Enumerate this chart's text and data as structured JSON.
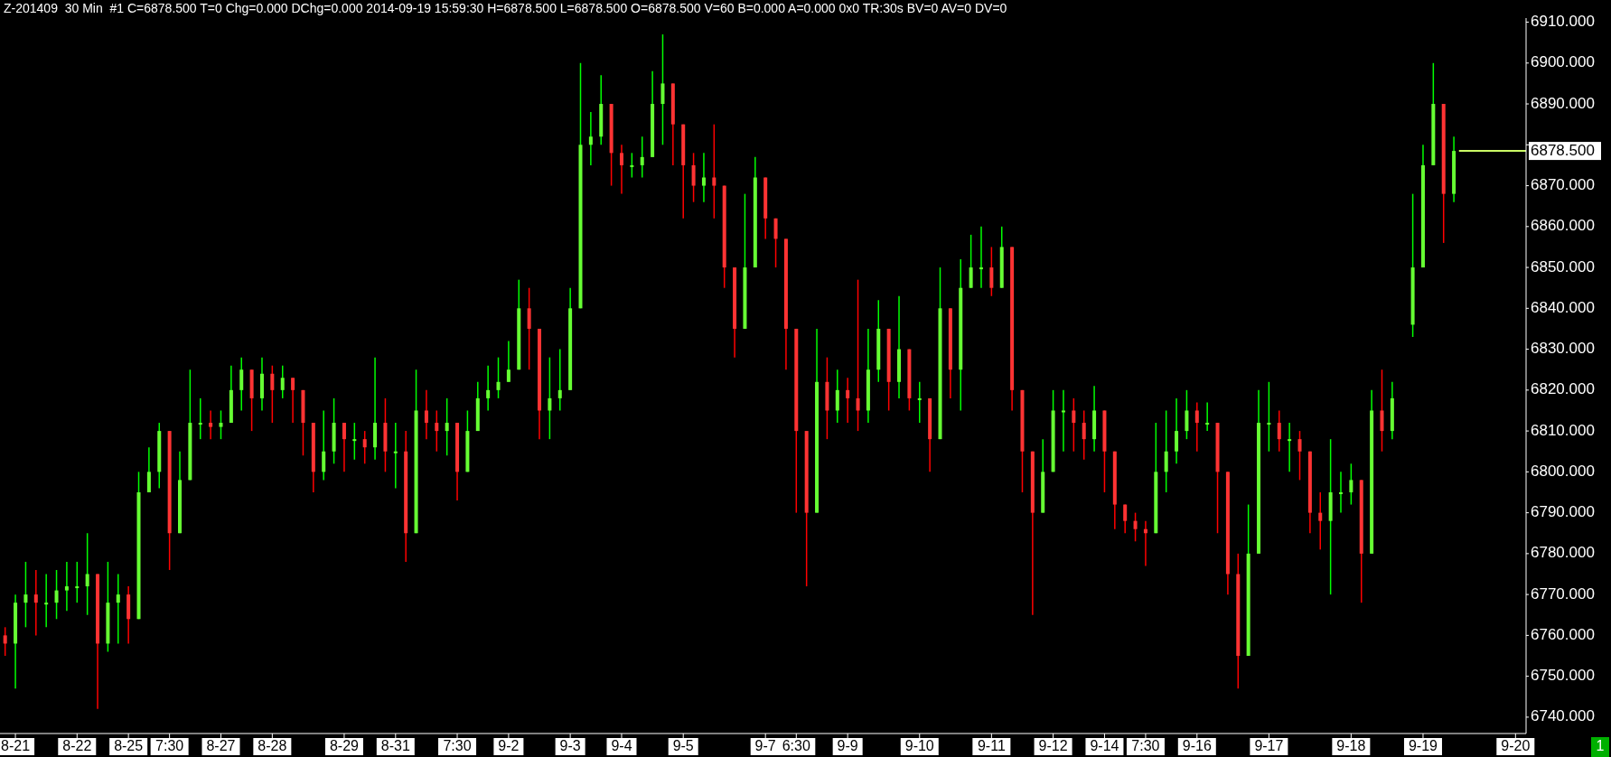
{
  "chart_data": {
    "type": "candlestick",
    "title": "Z-201409  30 Min  #1 C=6878.500 T=0 Chg=0.000 DChg=0.000 2014-09-19 15:59:30 H=6878.500 L=6878.500 O=6878.500 V=60 B=0.000 A=0.000 0x0 TR:30s BV=0 AV=0 DV=0",
    "categories": [
      null,
      "8-21",
      null,
      null,
      null,
      null,
      null,
      "8-22",
      null,
      null,
      null,
      null,
      "8-25",
      null,
      null,
      null,
      "7:30",
      null,
      null,
      null,
      null,
      "8-27",
      null,
      null,
      null,
      null,
      "8-28",
      null,
      null,
      null,
      null,
      null,
      null,
      "8-29",
      null,
      null,
      null,
      null,
      "8-31",
      null,
      null,
      null,
      null,
      null,
      "7:30",
      null,
      null,
      null,
      null,
      "9-2",
      null,
      null,
      null,
      null,
      null,
      "9-3",
      null,
      null,
      null,
      null,
      "9-4",
      null,
      null,
      null,
      null,
      null,
      "9-5",
      null,
      null,
      null,
      null,
      null,
      null,
      null,
      "9-7",
      null,
      null,
      "6:30",
      null,
      null,
      null,
      null,
      "9-9",
      null,
      null,
      null,
      null,
      null,
      null,
      "9-10",
      null,
      null,
      null,
      null,
      null,
      null,
      "9-11",
      null,
      null,
      null,
      null,
      null,
      "9-12",
      null,
      null,
      null,
      null,
      "9-14",
      null,
      null,
      null,
      "7:30",
      null,
      null,
      null,
      null,
      "9-16",
      null,
      null,
      null,
      null,
      null,
      null,
      "9-17",
      null,
      null,
      null,
      null,
      null,
      null,
      null,
      "9-18",
      null,
      null,
      null,
      null,
      null,
      null,
      "9-19",
      null,
      null,
      null,
      null,
      null,
      null,
      null,
      null,
      "9-20"
    ],
    "ohlc": [
      [
        6760,
        6762,
        6755,
        6758
      ],
      [
        6758,
        6770,
        6747,
        6768
      ],
      [
        6768,
        6778,
        6762,
        6770
      ],
      [
        6770,
        6776,
        6760,
        6768
      ],
      [
        6768,
        6775,
        6762,
        6768
      ],
      [
        6768,
        6776,
        6764,
        6771
      ],
      [
        6771,
        6778,
        6766,
        6772
      ],
      [
        6772,
        6778,
        6768,
        6772
      ],
      [
        6772,
        6785,
        6765,
        6775
      ],
      [
        6775,
        6775,
        6742,
        6758
      ],
      [
        6758,
        6778,
        6756,
        6768
      ],
      [
        6768,
        6775,
        6758,
        6770
      ],
      [
        6770,
        6772,
        6758,
        6764
      ],
      [
        6764,
        6800,
        6764,
        6795
      ],
      [
        6795,
        6806,
        6795,
        6800
      ],
      [
        6800,
        6812,
        6796,
        6810
      ],
      [
        6810,
        6810,
        6776,
        6785
      ],
      [
        6785,
        6805,
        6785,
        6798
      ],
      [
        6798,
        6825,
        6798,
        6812
      ],
      [
        6812,
        6818,
        6808,
        6812
      ],
      [
        6812,
        6815,
        6808,
        6811
      ],
      [
        6811,
        6815,
        6808,
        6812
      ],
      [
        6812,
        6826,
        6812,
        6820
      ],
      [
        6820,
        6828,
        6815,
        6825
      ],
      [
        6825,
        6825,
        6810,
        6818
      ],
      [
        6818,
        6828,
        6815,
        6824
      ],
      [
        6824,
        6826,
        6812,
        6820
      ],
      [
        6820,
        6826,
        6818,
        6823
      ],
      [
        6823,
        6823,
        6812,
        6820
      ],
      [
        6820,
        6820,
        6804,
        6812
      ],
      [
        6812,
        6812,
        6795,
        6800
      ],
      [
        6800,
        6815,
        6798,
        6805
      ],
      [
        6805,
        6818,
        6802,
        6812
      ],
      [
        6812,
        6812,
        6800,
        6808
      ],
      [
        6808,
        6812,
        6803,
        6808
      ],
      [
        6808,
        6810,
        6802,
        6806
      ],
      [
        6806,
        6828,
        6803,
        6812
      ],
      [
        6812,
        6818,
        6800,
        6805
      ],
      [
        6805,
        6812,
        6796,
        6805
      ],
      [
        6805,
        6810,
        6778,
        6785
      ],
      [
        6785,
        6825,
        6785,
        6815
      ],
      [
        6815,
        6820,
        6808,
        6812
      ],
      [
        6812,
        6815,
        6805,
        6810
      ],
      [
        6810,
        6818,
        6804,
        6812
      ],
      [
        6812,
        6812,
        6793,
        6800
      ],
      [
        6800,
        6815,
        6800,
        6810
      ],
      [
        6810,
        6822,
        6810,
        6818
      ],
      [
        6818,
        6826,
        6815,
        6820
      ],
      [
        6820,
        6828,
        6818,
        6822
      ],
      [
        6822,
        6832,
        6822,
        6825
      ],
      [
        6825,
        6847,
        6825,
        6840
      ],
      [
        6840,
        6845,
        6825,
        6835
      ],
      [
        6835,
        6835,
        6808,
        6815
      ],
      [
        6815,
        6828,
        6808,
        6818
      ],
      [
        6818,
        6830,
        6815,
        6820
      ],
      [
        6820,
        6845,
        6820,
        6840
      ],
      [
        6840,
        6900,
        6840,
        6880
      ],
      [
        6880,
        6888,
        6875,
        6882
      ],
      [
        6882,
        6897,
        6880,
        6890
      ],
      [
        6890,
        6890,
        6870,
        6878
      ],
      [
        6878,
        6880,
        6868,
        6875
      ],
      [
        6875,
        6878,
        6872,
        6875
      ],
      [
        6875,
        6882,
        6872,
        6877
      ],
      [
        6877,
        6898,
        6877,
        6890
      ],
      [
        6890,
        6907,
        6880,
        6895
      ],
      [
        6895,
        6895,
        6875,
        6885
      ],
      [
        6885,
        6885,
        6862,
        6875
      ],
      [
        6875,
        6878,
        6866,
        6870
      ],
      [
        6870,
        6878,
        6866,
        6872
      ],
      [
        6872,
        6885,
        6862,
        6870
      ],
      [
        6870,
        6870,
        6845,
        6850
      ],
      [
        6850,
        6850,
        6828,
        6835
      ],
      [
        6835,
        6868,
        6835,
        6850
      ],
      [
        6850,
        6877,
        6850,
        6872
      ],
      [
        6872,
        6872,
        6857,
        6862
      ],
      [
        6862,
        6862,
        6850,
        6857
      ],
      [
        6857,
        6857,
        6825,
        6835
      ],
      [
        6835,
        6835,
        6790,
        6810
      ],
      [
        6810,
        6810,
        6772,
        6790
      ],
      [
        6790,
        6835,
        6790,
        6822
      ],
      [
        6822,
        6828,
        6808,
        6815
      ],
      [
        6815,
        6825,
        6812,
        6820
      ],
      [
        6820,
        6823,
        6812,
        6818
      ],
      [
        6818,
        6847,
        6810,
        6815
      ],
      [
        6815,
        6835,
        6812,
        6825
      ],
      [
        6825,
        6842,
        6822,
        6835
      ],
      [
        6835,
        6835,
        6815,
        6822
      ],
      [
        6822,
        6843,
        6818,
        6830
      ],
      [
        6830,
        6830,
        6815,
        6818
      ],
      [
        6818,
        6822,
        6812,
        6818
      ],
      [
        6818,
        6818,
        6800,
        6808
      ],
      [
        6808,
        6850,
        6808,
        6840
      ],
      [
        6840,
        6840,
        6818,
        6825
      ],
      [
        6825,
        6852,
        6815,
        6845
      ],
      [
        6845,
        6858,
        6845,
        6850
      ],
      [
        6850,
        6860,
        6845,
        6850
      ],
      [
        6850,
        6855,
        6843,
        6845
      ],
      [
        6845,
        6860,
        6845,
        6855
      ],
      [
        6855,
        6855,
        6815,
        6820
      ],
      [
        6820,
        6820,
        6795,
        6805
      ],
      [
        6805,
        6805,
        6765,
        6790
      ],
      [
        6790,
        6808,
        6790,
        6800
      ],
      [
        6800,
        6820,
        6800,
        6815
      ],
      [
        6815,
        6820,
        6805,
        6815
      ],
      [
        6815,
        6818,
        6805,
        6812
      ],
      [
        6812,
        6815,
        6803,
        6808
      ],
      [
        6808,
        6821,
        6805,
        6815
      ],
      [
        6815,
        6815,
        6795,
        6805
      ],
      [
        6805,
        6805,
        6786,
        6792
      ],
      [
        6792,
        6792,
        6785,
        6788
      ],
      [
        6788,
        6790,
        6783,
        6786
      ],
      [
        6786,
        6788,
        6777,
        6785
      ],
      [
        6785,
        6812,
        6785,
        6800
      ],
      [
        6800,
        6815,
        6795,
        6805
      ],
      [
        6805,
        6818,
        6802,
        6810
      ],
      [
        6810,
        6820,
        6808,
        6815
      ],
      [
        6815,
        6817,
        6805,
        6812
      ],
      [
        6812,
        6817,
        6810,
        6812
      ],
      [
        6812,
        6812,
        6785,
        6800
      ],
      [
        6800,
        6800,
        6770,
        6775
      ],
      [
        6775,
        6780,
        6747,
        6755
      ],
      [
        6755,
        6792,
        6755,
        6780
      ],
      [
        6780,
        6820,
        6780,
        6812
      ],
      [
        6812,
        6822,
        6805,
        6812
      ],
      [
        6812,
        6815,
        6805,
        6808
      ],
      [
        6808,
        6812,
        6800,
        6808
      ],
      [
        6808,
        6810,
        6798,
        6805
      ],
      [
        6805,
        6805,
        6785,
        6790
      ],
      [
        6790,
        6795,
        6781,
        6788
      ],
      [
        6788,
        6808,
        6770,
        6795
      ],
      [
        6795,
        6800,
        6790,
        6795
      ],
      [
        6795,
        6802,
        6792,
        6798
      ],
      [
        6798,
        6798,
        6768,
        6780
      ],
      [
        6780,
        6820,
        6780,
        6815
      ],
      [
        6815,
        6825,
        6805,
        6810
      ],
      [
        6810,
        6822,
        6808,
        6818
      ],
      null,
      [
        6836,
        6868,
        6833,
        6850
      ],
      [
        6850,
        6880,
        6850,
        6875
      ],
      [
        6875,
        6900,
        6875,
        6890
      ],
      [
        6890,
        6890,
        6856,
        6868
      ],
      [
        6868,
        6882,
        6866,
        6878.5
      ],
      null,
      null,
      null,
      null,
      null,
      null
    ],
    "ylim": [
      6736,
      6911
    ],
    "yticks": [
      {
        "value": 6740,
        "label": "6740.000"
      },
      {
        "value": 6750,
        "label": "6750.000"
      },
      {
        "value": 6760,
        "label": "6760.000"
      },
      {
        "value": 6770,
        "label": "6770.000"
      },
      {
        "value": 6780,
        "label": "6780.000"
      },
      {
        "value": 6790,
        "label": "6790.000"
      },
      {
        "value": 6800,
        "label": "6800.000"
      },
      {
        "value": 6810,
        "label": "6810.000"
      },
      {
        "value": 6820,
        "label": "6820.000"
      },
      {
        "value": 6830,
        "label": "6830.000"
      },
      {
        "value": 6840,
        "label": "6840.000"
      },
      {
        "value": 6850,
        "label": "6850.000"
      },
      {
        "value": 6860,
        "label": "6860.000"
      },
      {
        "value": 6870,
        "label": "6870.000"
      },
      {
        "value": 6880,
        "label": null
      },
      {
        "value": 6890,
        "label": "6890.000"
      },
      {
        "value": 6900,
        "label": "6900.000"
      },
      {
        "value": 6910,
        "label": "6910.000"
      }
    ],
    "ref_lines": [
      {
        "axis": "y",
        "value": 6878.5,
        "label": "6878.500",
        "color": "#ccff66"
      }
    ],
    "annotations": [
      "1"
    ]
  }
}
